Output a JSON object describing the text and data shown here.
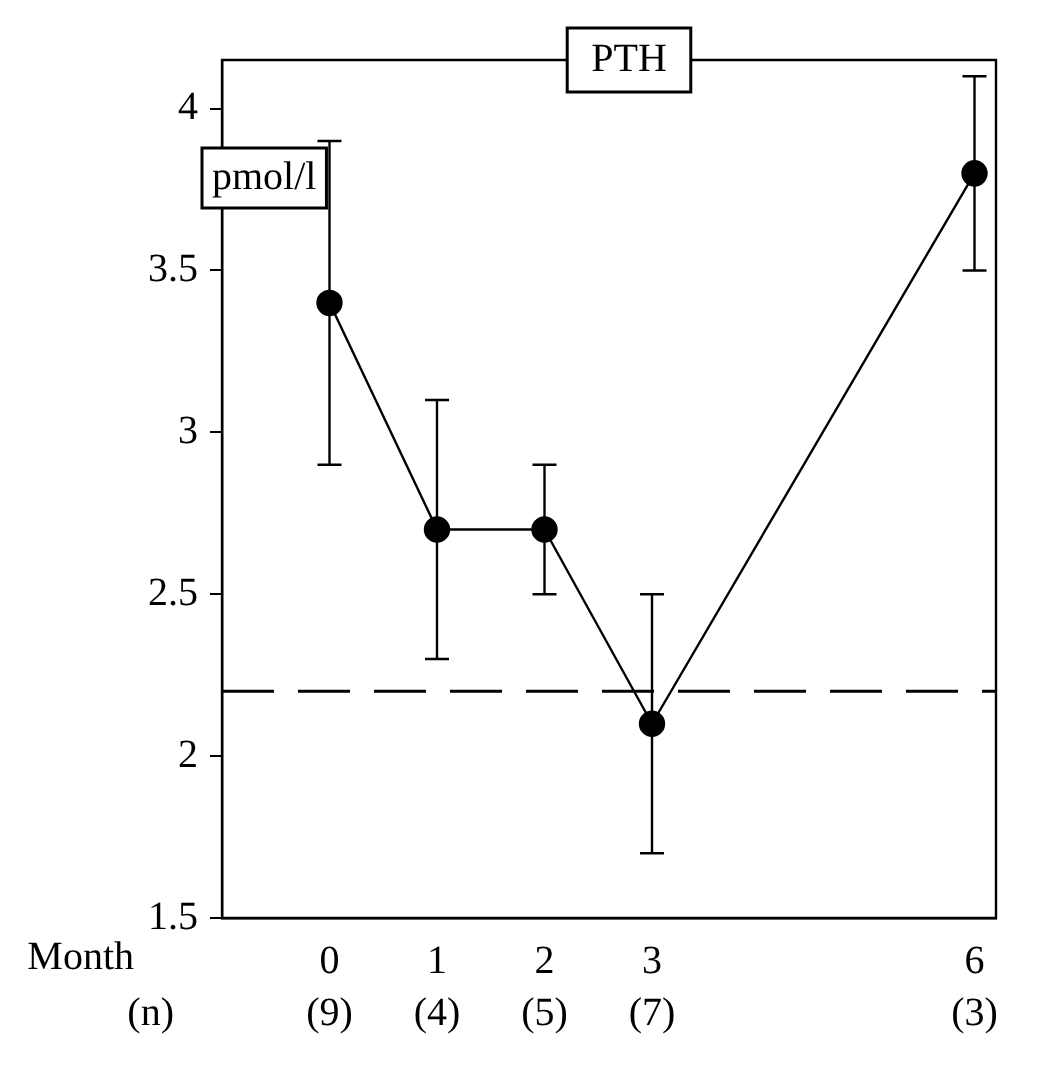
{
  "chart_data": {
    "type": "line",
    "title": "PTH",
    "ylabel": "pmol/l",
    "x": [
      0,
      1,
      2,
      3,
      6
    ],
    "series": [
      {
        "color": "#000000",
        "values": [
          3.4,
          2.7,
          2.7,
          2.1,
          3.8
        ],
        "errors": [
          0.5,
          0.4,
          0.2,
          0.4,
          0.3
        ]
      }
    ],
    "xlim": [
      -1,
      6.2
    ],
    "xticks": [
      0,
      1,
      2,
      3,
      6
    ],
    "ylim": [
      1.5,
      4.15
    ],
    "yticks": [
      1.5,
      2,
      2.5,
      3,
      3.5,
      4
    ],
    "ref_lines": [
      {
        "axis": "y",
        "value": 2.2,
        "line_style": "dashed"
      }
    ],
    "annotations": [
      "Month",
      "(n)",
      "(9)",
      "(4)",
      "(5)",
      "(7)",
      "(3)"
    ],
    "marker": "circle",
    "line_style": "solid",
    "grid": false,
    "legend": false
  }
}
